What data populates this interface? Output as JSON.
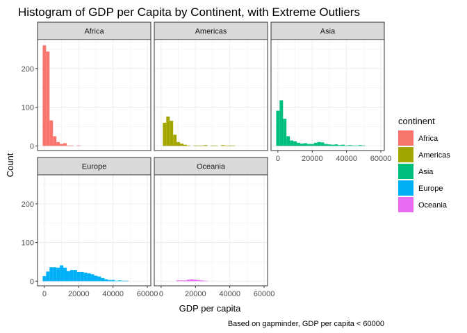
{
  "chart_data": {
    "type": "bar",
    "title": "Histogram of GDP per Capita by Continent, with Extreme Outliers",
    "xlabel": "GDP per capita",
    "ylabel": "Count",
    "caption": "Based on gapminder, GDP per capita < 60000",
    "xlim": [
      -4000,
      62000
    ],
    "ylim": [
      -12,
      275
    ],
    "x_ticks": [
      0,
      20000,
      40000,
      60000
    ],
    "x_tick_labels": [
      "0",
      "20000",
      "40000",
      "60000"
    ],
    "y_ticks": [
      0,
      100,
      200
    ],
    "y_tick_labels": [
      "0",
      "100",
      "200"
    ],
    "bin_width": 2000,
    "grid": true,
    "legend": {
      "title": "continent",
      "position": "right",
      "entries": [
        "Africa",
        "Americas",
        "Asia",
        "Europe",
        "Oceania"
      ]
    },
    "series": [
      {
        "name": "Africa",
        "color": "#F8766D",
        "bins": [
          [
            0,
            260
          ],
          [
            2000,
            244
          ],
          [
            4000,
            66
          ],
          [
            6000,
            25
          ],
          [
            8000,
            10
          ],
          [
            10000,
            5
          ],
          [
            12000,
            7
          ],
          [
            14000,
            1
          ],
          [
            16000,
            1
          ],
          [
            20000,
            1
          ]
        ]
      },
      {
        "name": "Americas",
        "color": "#A3A500",
        "bins": [
          [
            2000,
            60
          ],
          [
            4000,
            76
          ],
          [
            6000,
            65
          ],
          [
            8000,
            29
          ],
          [
            10000,
            10
          ],
          [
            12000,
            6
          ],
          [
            14000,
            3
          ],
          [
            16000,
            1
          ],
          [
            20000,
            1
          ],
          [
            22000,
            1
          ],
          [
            24000,
            1
          ],
          [
            26000,
            2
          ],
          [
            30000,
            1
          ],
          [
            32000,
            1
          ],
          [
            36000,
            2
          ],
          [
            38000,
            1
          ],
          [
            40000,
            1
          ],
          [
            42000,
            1
          ]
        ]
      },
      {
        "name": "Asia",
        "color": "#00BF7D",
        "bins": [
          [
            0,
            91
          ],
          [
            2000,
            118
          ],
          [
            4000,
            70
          ],
          [
            6000,
            25
          ],
          [
            8000,
            14
          ],
          [
            10000,
            12
          ],
          [
            12000,
            8
          ],
          [
            14000,
            6
          ],
          [
            16000,
            7
          ],
          [
            18000,
            5
          ],
          [
            20000,
            5
          ],
          [
            22000,
            8
          ],
          [
            24000,
            10
          ],
          [
            26000,
            9
          ],
          [
            28000,
            5
          ],
          [
            30000,
            4
          ],
          [
            32000,
            3
          ],
          [
            34000,
            4
          ],
          [
            36000,
            2
          ],
          [
            38000,
            3
          ],
          [
            40000,
            1
          ],
          [
            42000,
            2
          ],
          [
            44000,
            1
          ],
          [
            46000,
            1
          ],
          [
            48000,
            2
          ],
          [
            50000,
            1
          ]
        ]
      },
      {
        "name": "Europe",
        "color": "#00B0F6",
        "bins": [
          [
            0,
            13
          ],
          [
            2000,
            25
          ],
          [
            4000,
            36
          ],
          [
            6000,
            36
          ],
          [
            8000,
            35
          ],
          [
            10000,
            41
          ],
          [
            12000,
            35
          ],
          [
            14000,
            26
          ],
          [
            16000,
            29
          ],
          [
            18000,
            29
          ],
          [
            20000,
            24
          ],
          [
            22000,
            24
          ],
          [
            24000,
            22
          ],
          [
            26000,
            20
          ],
          [
            28000,
            18
          ],
          [
            30000,
            14
          ],
          [
            32000,
            12
          ],
          [
            34000,
            8
          ],
          [
            36000,
            5
          ],
          [
            38000,
            3
          ],
          [
            40000,
            3
          ],
          [
            42000,
            1
          ],
          [
            44000,
            2
          ],
          [
            46000,
            1
          ],
          [
            48000,
            1
          ]
        ]
      },
      {
        "name": "Oceania",
        "color": "#E76BF3",
        "bins": [
          [
            10000,
            2
          ],
          [
            12000,
            2
          ],
          [
            14000,
            2
          ],
          [
            16000,
            4
          ],
          [
            18000,
            5
          ],
          [
            20000,
            4
          ],
          [
            22000,
            3
          ],
          [
            24000,
            2
          ],
          [
            26000,
            1
          ]
        ]
      }
    ]
  }
}
